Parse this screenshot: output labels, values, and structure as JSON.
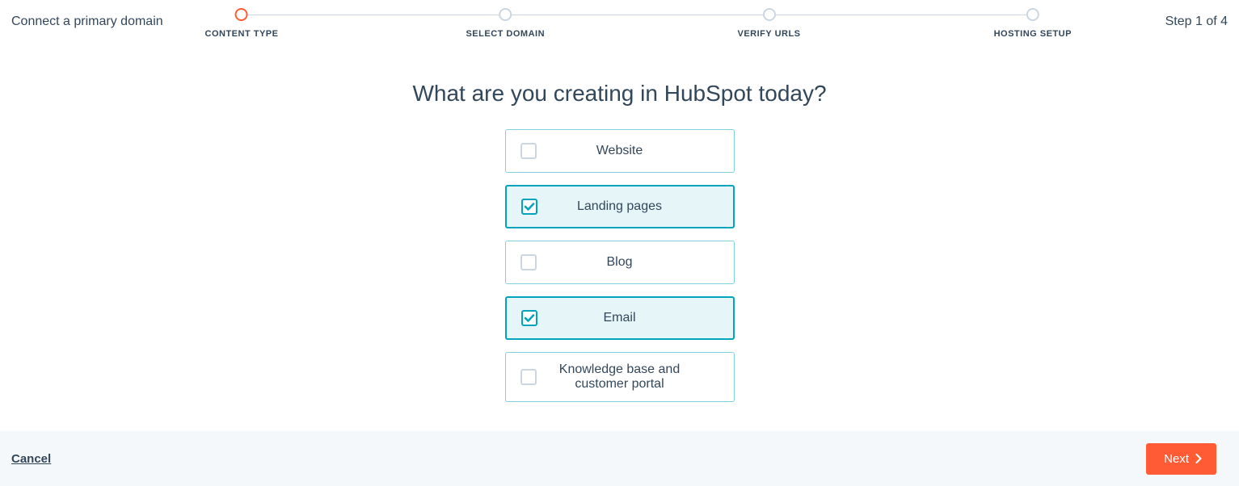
{
  "header": {
    "page_title": "Connect a primary domain",
    "step_text": "Step 1 of 4"
  },
  "stepper": {
    "line_color": "#cbd6e2",
    "inactive_color": "#cbd6e2",
    "active_color": "#ff5c35",
    "steps": [
      {
        "label": "CONTENT TYPE",
        "position_pct": 4,
        "active": true
      },
      {
        "label": "SELECT DOMAIN",
        "position_pct": 33,
        "active": false
      },
      {
        "label": "VERIFY URLS",
        "position_pct": 62,
        "active": false
      },
      {
        "label": "HOSTING SETUP",
        "position_pct": 91,
        "active": false
      }
    ]
  },
  "main": {
    "heading": "What are you creating in HubSpot today?",
    "option_border_color": "#7fd1de",
    "option_selected_border_color": "#00a4bd",
    "option_selected_bg": "#e5f5f8",
    "options": [
      {
        "id": "website",
        "label": "Website",
        "selected": false
      },
      {
        "id": "landing-pages",
        "label": "Landing pages",
        "selected": true
      },
      {
        "id": "blog",
        "label": "Blog",
        "selected": false
      },
      {
        "id": "email",
        "label": "Email",
        "selected": true
      },
      {
        "id": "knowledge-base",
        "label": "Knowledge base and customer portal",
        "selected": false
      }
    ]
  },
  "footer": {
    "cancel_label": "Cancel",
    "next_label": "Next",
    "footer_bg": "#f5f8fa",
    "next_bg": "#ff5c35"
  }
}
